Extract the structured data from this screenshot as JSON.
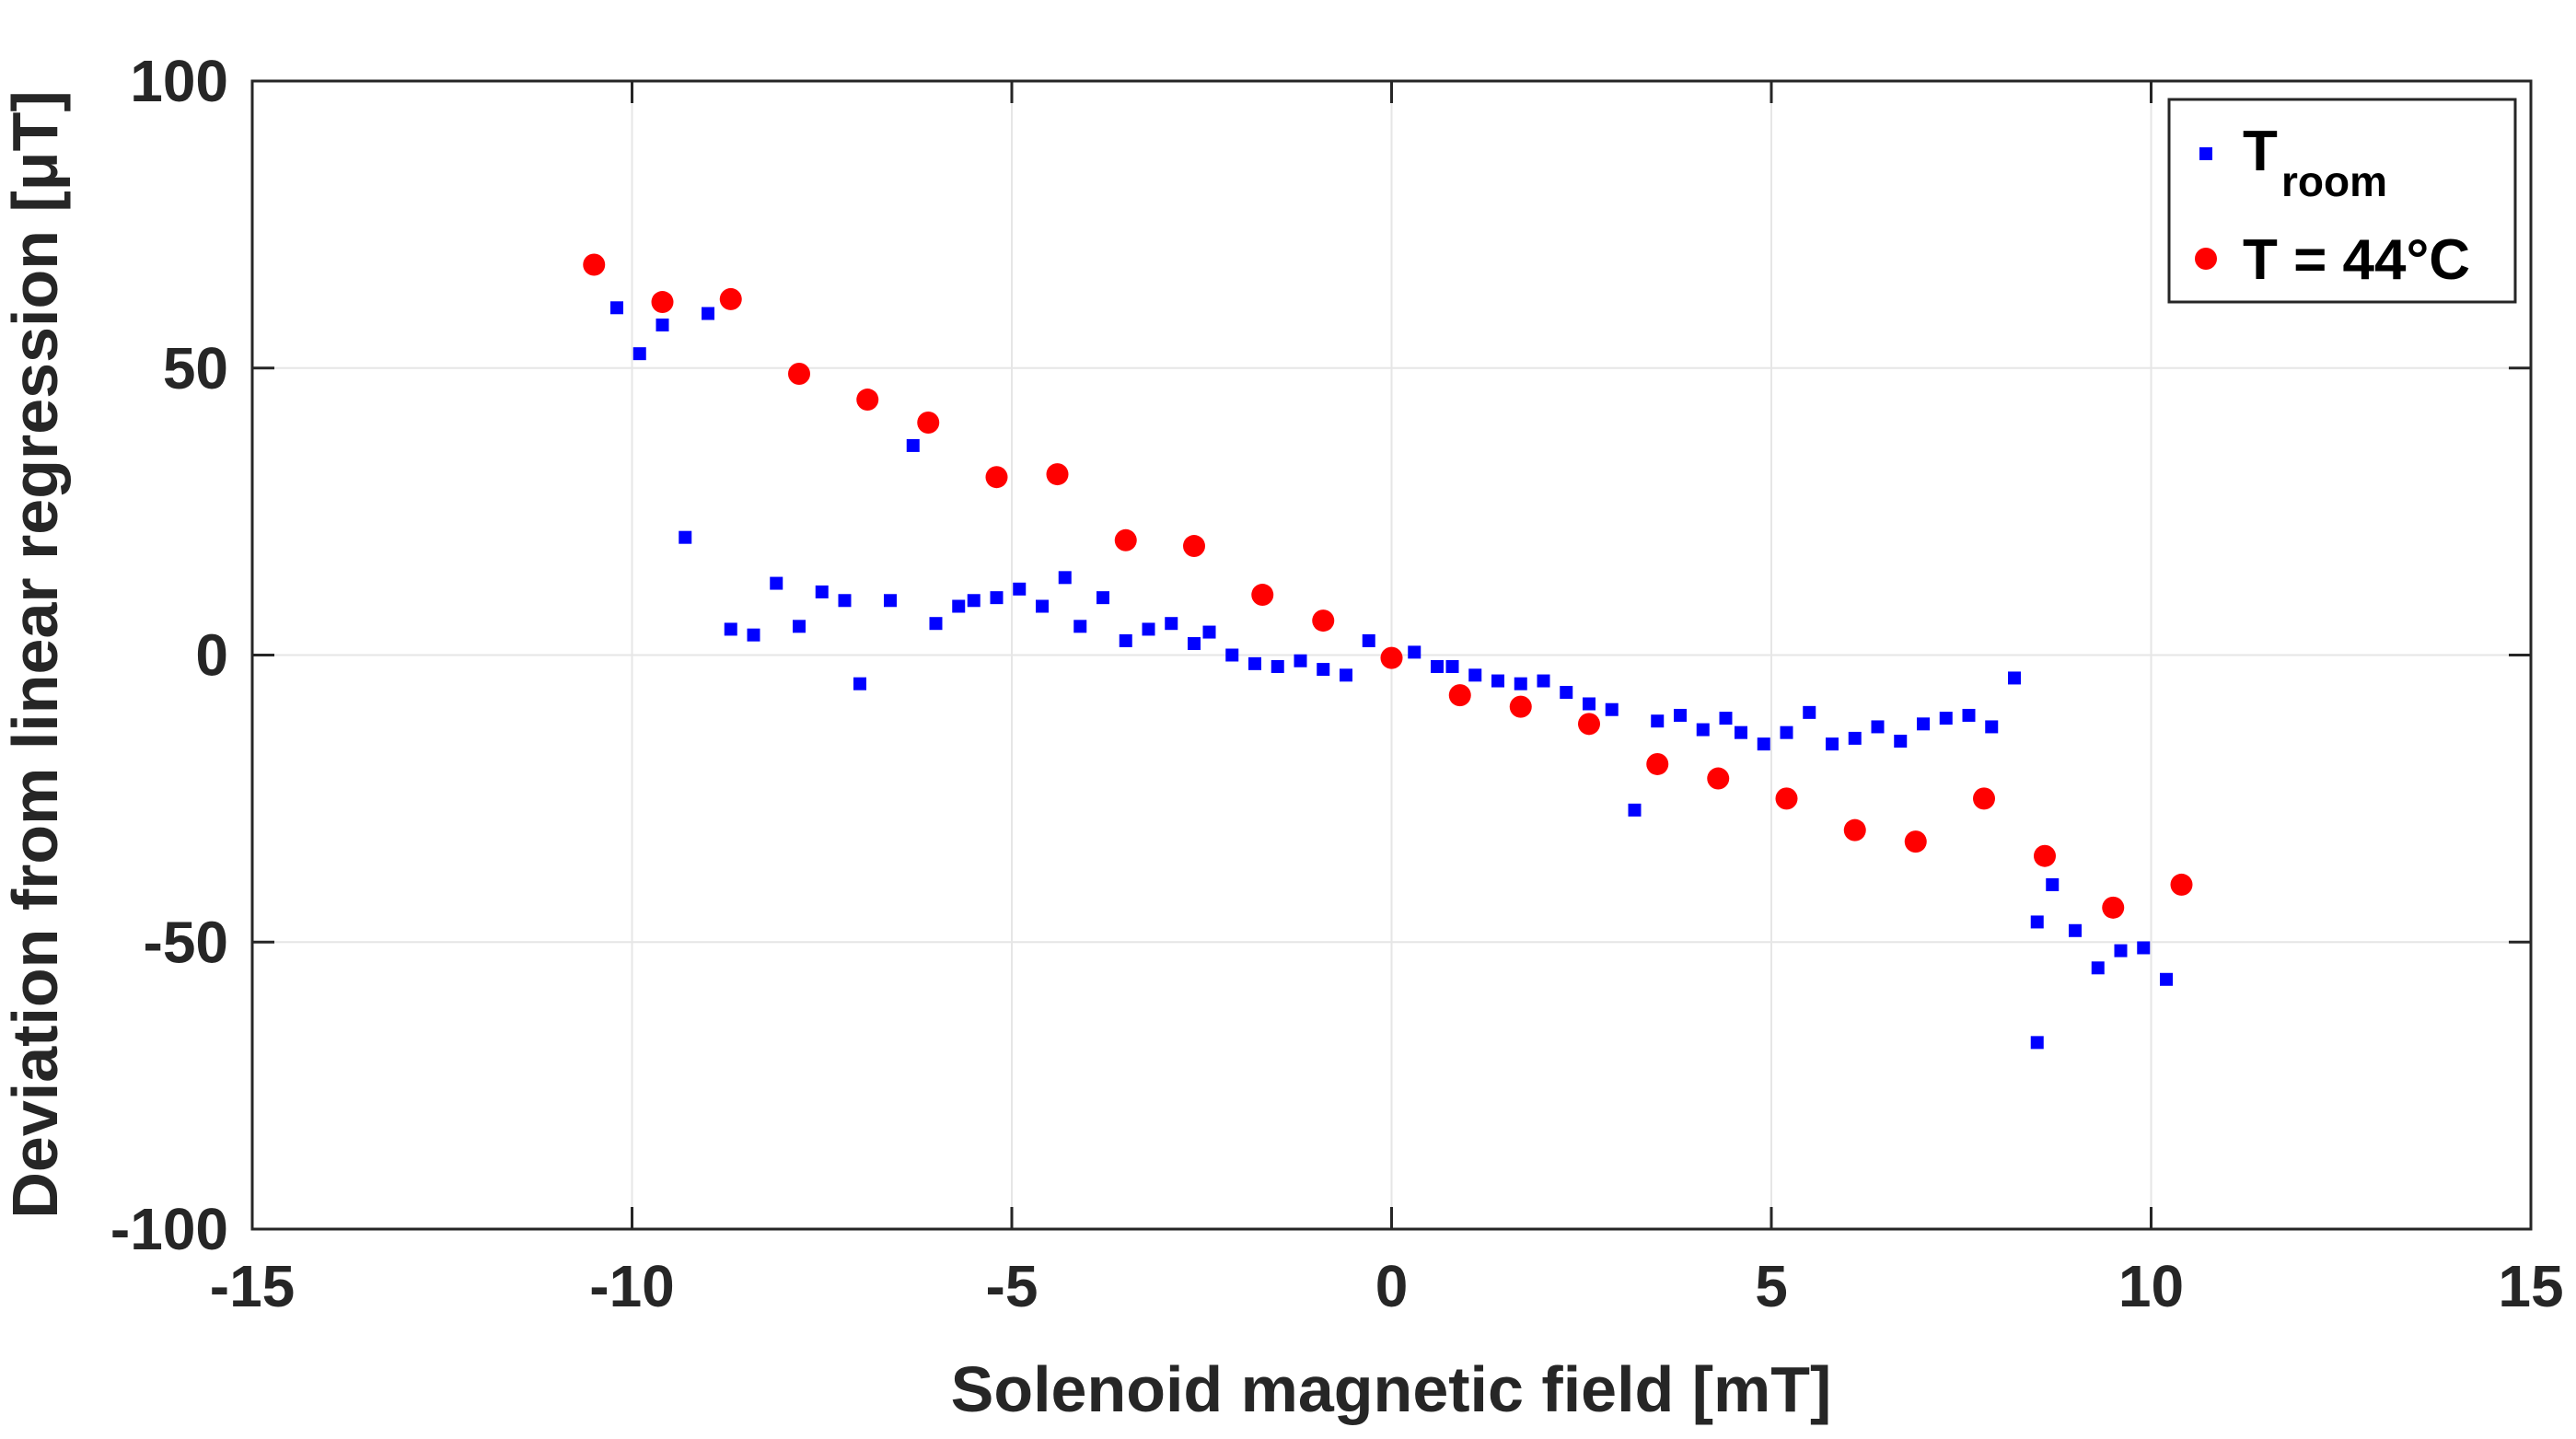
{
  "chart_data": {
    "type": "scatter",
    "xlabel": "Solenoid magnetic field [mT]",
    "ylabel": "Deviation from linear regression [μT]",
    "xlim": [
      -15,
      15
    ],
    "ylim": [
      -100,
      100
    ],
    "xticks": [
      -15,
      -10,
      -5,
      0,
      5,
      10,
      15
    ],
    "yticks": [
      -100,
      -50,
      0,
      50,
      100
    ],
    "grid": true,
    "legend_position": "top-right",
    "series": [
      {
        "name": "T",
        "name_subscript": "room",
        "marker": "square",
        "color": "#0000ff",
        "points": [
          [
            -10.2,
            60.5
          ],
          [
            -9.9,
            52.5
          ],
          [
            -9.6,
            57.5
          ],
          [
            -9.3,
            20.5
          ],
          [
            -9.0,
            59.5
          ],
          [
            -8.7,
            4.5
          ],
          [
            -8.4,
            3.5
          ],
          [
            -8.1,
            12.5
          ],
          [
            -7.8,
            5.0
          ],
          [
            -7.5,
            11.0
          ],
          [
            -7.2,
            9.5
          ],
          [
            -7.0,
            -5.0
          ],
          [
            -6.6,
            9.5
          ],
          [
            -6.3,
            36.5
          ],
          [
            -6.0,
            5.5
          ],
          [
            -5.7,
            8.5
          ],
          [
            -5.5,
            9.5
          ],
          [
            -5.2,
            10.0
          ],
          [
            -4.9,
            11.5
          ],
          [
            -4.6,
            8.5
          ],
          [
            -4.3,
            13.5
          ],
          [
            -4.1,
            5.0
          ],
          [
            -3.8,
            10.0
          ],
          [
            -3.5,
            2.5
          ],
          [
            -3.2,
            4.5
          ],
          [
            -2.9,
            5.5
          ],
          [
            -2.6,
            2.0
          ],
          [
            -2.4,
            4.0
          ],
          [
            -2.1,
            0.0
          ],
          [
            -1.8,
            -1.5
          ],
          [
            -1.5,
            -2.0
          ],
          [
            -1.2,
            -1.0
          ],
          [
            -0.9,
            -2.5
          ],
          [
            -0.6,
            -3.5
          ],
          [
            -0.3,
            2.5
          ],
          [
            0.0,
            -0.5
          ],
          [
            0.3,
            0.5
          ],
          [
            0.6,
            -2.0
          ],
          [
            0.8,
            -2.0
          ],
          [
            1.1,
            -3.5
          ],
          [
            1.4,
            -4.5
          ],
          [
            1.7,
            -5.0
          ],
          [
            2.0,
            -4.5
          ],
          [
            2.3,
            -6.5
          ],
          [
            2.6,
            -8.5
          ],
          [
            2.9,
            -9.5
          ],
          [
            3.2,
            -27.0
          ],
          [
            3.5,
            -11.5
          ],
          [
            3.8,
            -10.5
          ],
          [
            4.1,
            -13.0
          ],
          [
            4.4,
            -11.0
          ],
          [
            4.6,
            -13.5
          ],
          [
            4.9,
            -15.5
          ],
          [
            5.2,
            -13.5
          ],
          [
            5.5,
            -10.0
          ],
          [
            5.8,
            -15.5
          ],
          [
            6.1,
            -14.5
          ],
          [
            6.4,
            -12.5
          ],
          [
            6.7,
            -15.0
          ],
          [
            7.0,
            -12.0
          ],
          [
            7.3,
            -11.0
          ],
          [
            7.6,
            -10.5
          ],
          [
            7.9,
            -12.5
          ],
          [
            8.2,
            -4.0
          ],
          [
            8.5,
            -46.5
          ],
          [
            8.5,
            -67.5
          ],
          [
            8.7,
            -40.0
          ],
          [
            9.0,
            -48.0
          ],
          [
            9.3,
            -54.5
          ],
          [
            9.6,
            -51.5
          ],
          [
            9.9,
            -51.0
          ],
          [
            10.2,
            -56.5
          ]
        ]
      },
      {
        "name": "T = 44°C",
        "marker": "circle",
        "color": "#ff0000",
        "points": [
          [
            -10.5,
            68.0
          ],
          [
            -9.6,
            61.5
          ],
          [
            -8.7,
            62.0
          ],
          [
            -7.8,
            49.0
          ],
          [
            -6.9,
            44.5
          ],
          [
            -6.1,
            40.5
          ],
          [
            -5.2,
            31.0
          ],
          [
            -4.4,
            31.5
          ],
          [
            -3.5,
            20.0
          ],
          [
            -2.6,
            19.0
          ],
          [
            -1.7,
            10.5
          ],
          [
            -0.9,
            6.0
          ],
          [
            0.0,
            -0.5
          ],
          [
            0.9,
            -7.0
          ],
          [
            1.7,
            -9.0
          ],
          [
            2.6,
            -12.0
          ],
          [
            3.5,
            -19.0
          ],
          [
            4.3,
            -21.5
          ],
          [
            5.2,
            -25.0
          ],
          [
            6.1,
            -30.5
          ],
          [
            6.9,
            -32.5
          ],
          [
            7.8,
            -25.0
          ],
          [
            8.6,
            -35.0
          ],
          [
            9.5,
            -44.0
          ],
          [
            10.4,
            -40.0
          ]
        ]
      }
    ]
  }
}
